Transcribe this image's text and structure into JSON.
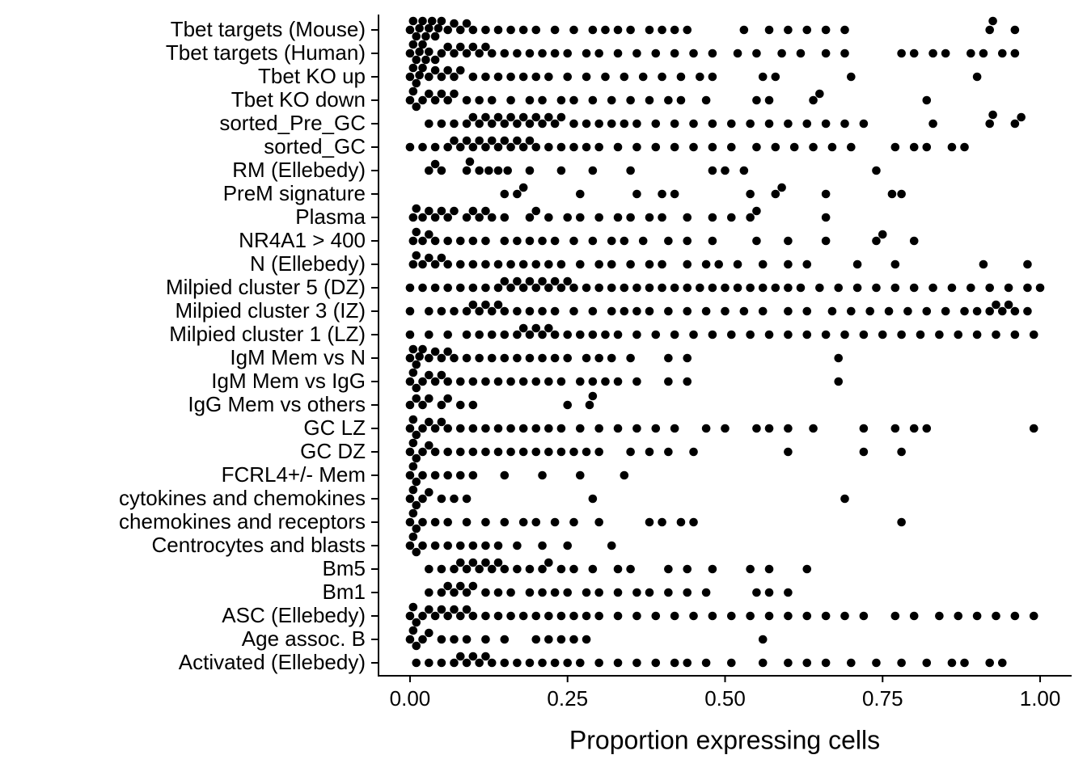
{
  "chart_data": {
    "type": "beeswarm",
    "xlabel": "Proportion expressing cells",
    "color": "#000000",
    "xlim": [
      -0.05,
      1.05
    ],
    "xticks": [
      {
        "value": 0,
        "label": "0.00"
      },
      {
        "value": 0.25,
        "label": "0.25"
      },
      {
        "value": 0.5,
        "label": "0.50"
      },
      {
        "value": 0.75,
        "label": "0.75"
      },
      {
        "value": 1,
        "label": "1.00"
      }
    ],
    "categories": [
      "Tbet targets (Mouse)",
      "Tbet targets (Human)",
      "Tbet KO up",
      "Tbet KO down",
      "sorted_Pre_GC",
      "sorted_GC",
      "RM (Ellebedy)",
      "PreM signature",
      "Plasma",
      "NR4A1 > 400",
      "N (Ellebedy)",
      "Milpied cluster 5 (DZ)",
      "Milpied cluster 3 (IZ)",
      "Milpied cluster 1 (LZ)",
      "IgM Mem vs N",
      "IgM Mem vs IgG",
      "IgG Mem vs others",
      "GC LZ",
      "GC DZ",
      "FCRL4+/- Mem",
      "cytokines and chemokines",
      "chemokines and receptors",
      "Centrocytes and blasts",
      "Bm5",
      "Bm1",
      "ASC (Ellebedy)",
      "Age assoc. B",
      "Activated (Ellebedy)"
    ],
    "values": [
      [
        0,
        0.005,
        0.01,
        0.015,
        0.02,
        0.025,
        0.03,
        0.035,
        0.04,
        0.045,
        0.05,
        0.06,
        0.07,
        0.08,
        0.09,
        0.1,
        0.12,
        0.14,
        0.16,
        0.18,
        0.2,
        0.23,
        0.26,
        0.29,
        0.31,
        0.33,
        0.35,
        0.38,
        0.4,
        0.42,
        0.44,
        0.53,
        0.57,
        0.6,
        0.63,
        0.66,
        0.69,
        0.92,
        0.925,
        0.96
      ],
      [
        0,
        0.005,
        0.01,
        0.015,
        0.02,
        0.025,
        0.03,
        0.04,
        0.05,
        0.06,
        0.07,
        0.08,
        0.09,
        0.1,
        0.11,
        0.12,
        0.13,
        0.15,
        0.17,
        0.19,
        0.21,
        0.23,
        0.25,
        0.28,
        0.3,
        0.33,
        0.36,
        0.39,
        0.42,
        0.45,
        0.48,
        0.52,
        0.55,
        0.59,
        0.62,
        0.66,
        0.69,
        0.78,
        0.8,
        0.83,
        0.85,
        0.89,
        0.91,
        0.94,
        0.96
      ],
      [
        0,
        0.005,
        0.01,
        0.015,
        0.02,
        0.03,
        0.04,
        0.05,
        0.06,
        0.07,
        0.08,
        0.1,
        0.12,
        0.14,
        0.16,
        0.18,
        0.2,
        0.22,
        0.25,
        0.28,
        0.31,
        0.34,
        0.37,
        0.4,
        0.43,
        0.46,
        0.48,
        0.56,
        0.58,
        0.7,
        0.9
      ],
      [
        0,
        0.005,
        0.01,
        0.02,
        0.03,
        0.04,
        0.05,
        0.06,
        0.07,
        0.09,
        0.11,
        0.13,
        0.16,
        0.19,
        0.21,
        0.24,
        0.26,
        0.29,
        0.32,
        0.35,
        0.38,
        0.41,
        0.43,
        0.47,
        0.55,
        0.57,
        0.64,
        0.65,
        0.82
      ],
      [
        0.03,
        0.05,
        0.07,
        0.09,
        0.1,
        0.11,
        0.12,
        0.13,
        0.14,
        0.15,
        0.16,
        0.17,
        0.18,
        0.19,
        0.2,
        0.21,
        0.22,
        0.23,
        0.24,
        0.26,
        0.28,
        0.3,
        0.32,
        0.34,
        0.36,
        0.39,
        0.42,
        0.45,
        0.48,
        0.51,
        0.54,
        0.57,
        0.6,
        0.63,
        0.66,
        0.69,
        0.72,
        0.83,
        0.92,
        0.925,
        0.96,
        0.97
      ],
      [
        0,
        0.02,
        0.04,
        0.06,
        0.07,
        0.08,
        0.09,
        0.1,
        0.11,
        0.12,
        0.13,
        0.14,
        0.15,
        0.16,
        0.17,
        0.18,
        0.19,
        0.2,
        0.22,
        0.24,
        0.26,
        0.28,
        0.3,
        0.33,
        0.36,
        0.39,
        0.42,
        0.45,
        0.48,
        0.51,
        0.55,
        0.58,
        0.61,
        0.64,
        0.67,
        0.7,
        0.77,
        0.8,
        0.82,
        0.86,
        0.88
      ],
      [
        0.03,
        0.04,
        0.05,
        0.09,
        0.095,
        0.11,
        0.125,
        0.14,
        0.155,
        0.19,
        0.24,
        0.29,
        0.35,
        0.48,
        0.5,
        0.53,
        0.74
      ],
      [
        0.15,
        0.17,
        0.18,
        0.27,
        0.36,
        0.4,
        0.42,
        0.54,
        0.58,
        0.59,
        0.66,
        0.765,
        0.78
      ],
      [
        0.005,
        0.01,
        0.02,
        0.03,
        0.04,
        0.05,
        0.06,
        0.07,
        0.09,
        0.1,
        0.11,
        0.12,
        0.13,
        0.15,
        0.19,
        0.2,
        0.22,
        0.25,
        0.27,
        0.3,
        0.33,
        0.35,
        0.38,
        0.4,
        0.44,
        0.48,
        0.51,
        0.54,
        0.55,
        0.66
      ],
      [
        0.005,
        0.01,
        0.02,
        0.03,
        0.04,
        0.06,
        0.08,
        0.1,
        0.12,
        0.15,
        0.17,
        0.19,
        0.21,
        0.23,
        0.26,
        0.29,
        0.32,
        0.34,
        0.37,
        0.41,
        0.44,
        0.48,
        0.55,
        0.6,
        0.66,
        0.74,
        0.75,
        0.8
      ],
      [
        0.005,
        0.01,
        0.02,
        0.03,
        0.04,
        0.05,
        0.06,
        0.08,
        0.1,
        0.12,
        0.14,
        0.16,
        0.18,
        0.2,
        0.22,
        0.24,
        0.27,
        0.3,
        0.32,
        0.35,
        0.38,
        0.4,
        0.44,
        0.47,
        0.49,
        0.52,
        0.56,
        0.6,
        0.63,
        0.71,
        0.77,
        0.91,
        0.98
      ],
      [
        0,
        0.02,
        0.04,
        0.06,
        0.08,
        0.1,
        0.12,
        0.14,
        0.15,
        0.16,
        0.17,
        0.18,
        0.19,
        0.2,
        0.21,
        0.22,
        0.23,
        0.24,
        0.25,
        0.26,
        0.28,
        0.3,
        0.32,
        0.34,
        0.36,
        0.38,
        0.4,
        0.42,
        0.44,
        0.46,
        0.48,
        0.5,
        0.52,
        0.54,
        0.56,
        0.58,
        0.6,
        0.62,
        0.65,
        0.68,
        0.71,
        0.74,
        0.77,
        0.8,
        0.83,
        0.86,
        0.89,
        0.92,
        0.95,
        0.98,
        1
      ],
      [
        0,
        0.03,
        0.05,
        0.07,
        0.09,
        0.1,
        0.11,
        0.12,
        0.13,
        0.14,
        0.15,
        0.17,
        0.19,
        0.21,
        0.23,
        0.26,
        0.29,
        0.32,
        0.34,
        0.36,
        0.38,
        0.41,
        0.44,
        0.47,
        0.5,
        0.53,
        0.56,
        0.6,
        0.63,
        0.67,
        0.7,
        0.73,
        0.76,
        0.79,
        0.82,
        0.85,
        0.88,
        0.9,
        0.92,
        0.93,
        0.94,
        0.95,
        0.96,
        0.98
      ],
      [
        0,
        0.03,
        0.06,
        0.09,
        0.11,
        0.13,
        0.15,
        0.17,
        0.18,
        0.19,
        0.2,
        0.21,
        0.22,
        0.23,
        0.25,
        0.27,
        0.29,
        0.31,
        0.33,
        0.36,
        0.39,
        0.42,
        0.45,
        0.48,
        0.51,
        0.54,
        0.57,
        0.6,
        0.63,
        0.66,
        0.69,
        0.72,
        0.75,
        0.78,
        0.81,
        0.84,
        0.87,
        0.9,
        0.93,
        0.96,
        0.99
      ],
      [
        0,
        0.005,
        0.01,
        0.015,
        0.02,
        0.03,
        0.04,
        0.05,
        0.06,
        0.07,
        0.09,
        0.11,
        0.13,
        0.15,
        0.17,
        0.19,
        0.21,
        0.23,
        0.25,
        0.28,
        0.3,
        0.32,
        0.35,
        0.41,
        0.44,
        0.68
      ],
      [
        0,
        0.005,
        0.01,
        0.02,
        0.03,
        0.04,
        0.05,
        0.06,
        0.08,
        0.1,
        0.12,
        0.14,
        0.16,
        0.18,
        0.2,
        0.22,
        0.24,
        0.27,
        0.29,
        0.31,
        0.33,
        0.36,
        0.41,
        0.44,
        0.68
      ],
      [
        0,
        0.01,
        0.02,
        0.03,
        0.05,
        0.06,
        0.08,
        0.1,
        0.25,
        0.285,
        0.29
      ],
      [
        0,
        0.005,
        0.01,
        0.02,
        0.03,
        0.04,
        0.05,
        0.06,
        0.08,
        0.1,
        0.12,
        0.14,
        0.16,
        0.18,
        0.2,
        0.22,
        0.24,
        0.27,
        0.3,
        0.33,
        0.36,
        0.39,
        0.42,
        0.47,
        0.5,
        0.55,
        0.57,
        0.6,
        0.64,
        0.72,
        0.77,
        0.8,
        0.82,
        0.99
      ],
      [
        0,
        0.005,
        0.01,
        0.02,
        0.03,
        0.04,
        0.06,
        0.08,
        0.1,
        0.12,
        0.14,
        0.16,
        0.18,
        0.2,
        0.22,
        0.24,
        0.26,
        0.28,
        0.3,
        0.35,
        0.38,
        0.41,
        0.45,
        0.6,
        0.72,
        0.78
      ],
      [
        0,
        0.005,
        0.01,
        0.02,
        0.04,
        0.06,
        0.08,
        0.1,
        0.15,
        0.21,
        0.27,
        0.34
      ],
      [
        0,
        0.005,
        0.01,
        0.02,
        0.03,
        0.05,
        0.07,
        0.09,
        0.29,
        0.69
      ],
      [
        0,
        0.005,
        0.01,
        0.02,
        0.04,
        0.06,
        0.09,
        0.12,
        0.15,
        0.18,
        0.2,
        0.23,
        0.26,
        0.3,
        0.38,
        0.4,
        0.43,
        0.45,
        0.78
      ],
      [
        0,
        0.005,
        0.01,
        0.02,
        0.04,
        0.06,
        0.08,
        0.1,
        0.12,
        0.14,
        0.17,
        0.21,
        0.25,
        0.32
      ],
      [
        0.03,
        0.05,
        0.07,
        0.08,
        0.09,
        0.1,
        0.11,
        0.12,
        0.13,
        0.14,
        0.15,
        0.17,
        0.19,
        0.21,
        0.22,
        0.24,
        0.26,
        0.29,
        0.33,
        0.35,
        0.41,
        0.44,
        0.48,
        0.54,
        0.57,
        0.63
      ],
      [
        0.03,
        0.05,
        0.06,
        0.07,
        0.08,
        0.09,
        0.1,
        0.12,
        0.14,
        0.16,
        0.19,
        0.21,
        0.23,
        0.25,
        0.28,
        0.3,
        0.33,
        0.36,
        0.38,
        0.41,
        0.44,
        0.47,
        0.55,
        0.57,
        0.6
      ],
      [
        0,
        0.005,
        0.01,
        0.02,
        0.03,
        0.04,
        0.05,
        0.06,
        0.07,
        0.08,
        0.09,
        0.1,
        0.12,
        0.14,
        0.16,
        0.18,
        0.2,
        0.22,
        0.24,
        0.26,
        0.28,
        0.3,
        0.33,
        0.36,
        0.39,
        0.42,
        0.45,
        0.48,
        0.51,
        0.54,
        0.57,
        0.6,
        0.63,
        0.66,
        0.69,
        0.72,
        0.77,
        0.8,
        0.84,
        0.87,
        0.9,
        0.93,
        0.96,
        0.99
      ],
      [
        0,
        0.005,
        0.01,
        0.02,
        0.03,
        0.05,
        0.07,
        0.09,
        0.12,
        0.15,
        0.2,
        0.22,
        0.24,
        0.26,
        0.28,
        0.56
      ],
      [
        0.01,
        0.03,
        0.05,
        0.07,
        0.08,
        0.09,
        0.1,
        0.11,
        0.12,
        0.13,
        0.15,
        0.17,
        0.19,
        0.21,
        0.23,
        0.25,
        0.27,
        0.3,
        0.33,
        0.36,
        0.39,
        0.42,
        0.44,
        0.47,
        0.51,
        0.56,
        0.6,
        0.63,
        0.66,
        0.7,
        0.74,
        0.78,
        0.82,
        0.86,
        0.88,
        0.92,
        0.94
      ]
    ]
  }
}
